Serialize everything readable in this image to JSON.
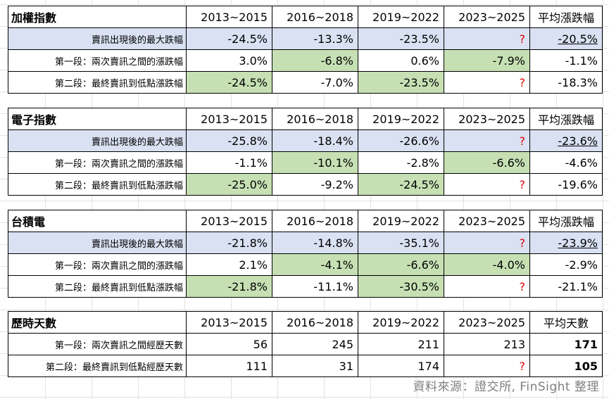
{
  "columns": [
    "2013~2015",
    "2016~2018",
    "2019~2022",
    "2023~2025"
  ],
  "watermark": "FinSight",
  "source": "資料來源：證交所, FinSight 整理",
  "colors": {
    "blue_fill": "#d9e1f2",
    "green_fill": "#c6e0b4",
    "question_mark": "#e00000"
  },
  "tables": [
    {
      "title": "加權指數",
      "avg_header": "平均漲跌幅",
      "rows": [
        {
          "label": "賣訊出現後的最大跌幅",
          "values": [
            "-24.5%",
            "-13.3%",
            "-23.5%",
            "?"
          ],
          "avg": "-20.5%"
        },
        {
          "label": "第一段：兩次賣訊之間的漲跌幅",
          "values": [
            "3.0%",
            "-6.8%",
            "0.6%",
            "-7.9%"
          ],
          "avg": "-1.1%"
        },
        {
          "label": "第二段：最終賣訊到低點漲跌幅",
          "values": [
            "-24.5%",
            "-7.0%",
            "-23.5%",
            "?"
          ],
          "avg": "-18.3%"
        }
      ]
    },
    {
      "title": "電子指數",
      "avg_header": "平均漲跌幅",
      "rows": [
        {
          "label": "賣訊出現後的最大跌幅",
          "values": [
            "-25.8%",
            "-18.4%",
            "-26.6%",
            "?"
          ],
          "avg": "-23.6%"
        },
        {
          "label": "第一段：兩次賣訊之間的漲跌幅",
          "values": [
            "-1.1%",
            "-10.1%",
            "-2.8%",
            "-6.6%"
          ],
          "avg": "-4.6%"
        },
        {
          "label": "第二段：最終賣訊到低點漲跌幅",
          "values": [
            "-25.0%",
            "-9.2%",
            "-24.5%",
            "?"
          ],
          "avg": "-19.6%"
        }
      ]
    },
    {
      "title": "台積電",
      "avg_header": "平均漲跌幅",
      "rows": [
        {
          "label": "賣訊出現後的最大跌幅",
          "values": [
            "-21.8%",
            "-14.8%",
            "-35.1%",
            "?"
          ],
          "avg": "-23.9%"
        },
        {
          "label": "第一段：兩次賣訊之間的漲跌幅",
          "values": [
            "2.1%",
            "-4.1%",
            "-6.6%",
            "-4.0%"
          ],
          "avg": "-2.9%"
        },
        {
          "label": "第二段：最終賣訊到低點漲跌幅",
          "values": [
            "-21.8%",
            "-11.1%",
            "-30.5%",
            "?"
          ],
          "avg": "-21.1%"
        }
      ]
    },
    {
      "title": "歷時天數",
      "avg_header": "平均天數",
      "rows": [
        {
          "label": "第一段：兩次賣訊之間經歷天數",
          "values": [
            "56",
            "245",
            "211",
            "213"
          ],
          "avg": "171"
        },
        {
          "label": "第二段：最終賣訊到低點經歷天數",
          "values": [
            "111",
            "31",
            "174",
            "?"
          ],
          "avg": "105"
        }
      ]
    }
  ]
}
